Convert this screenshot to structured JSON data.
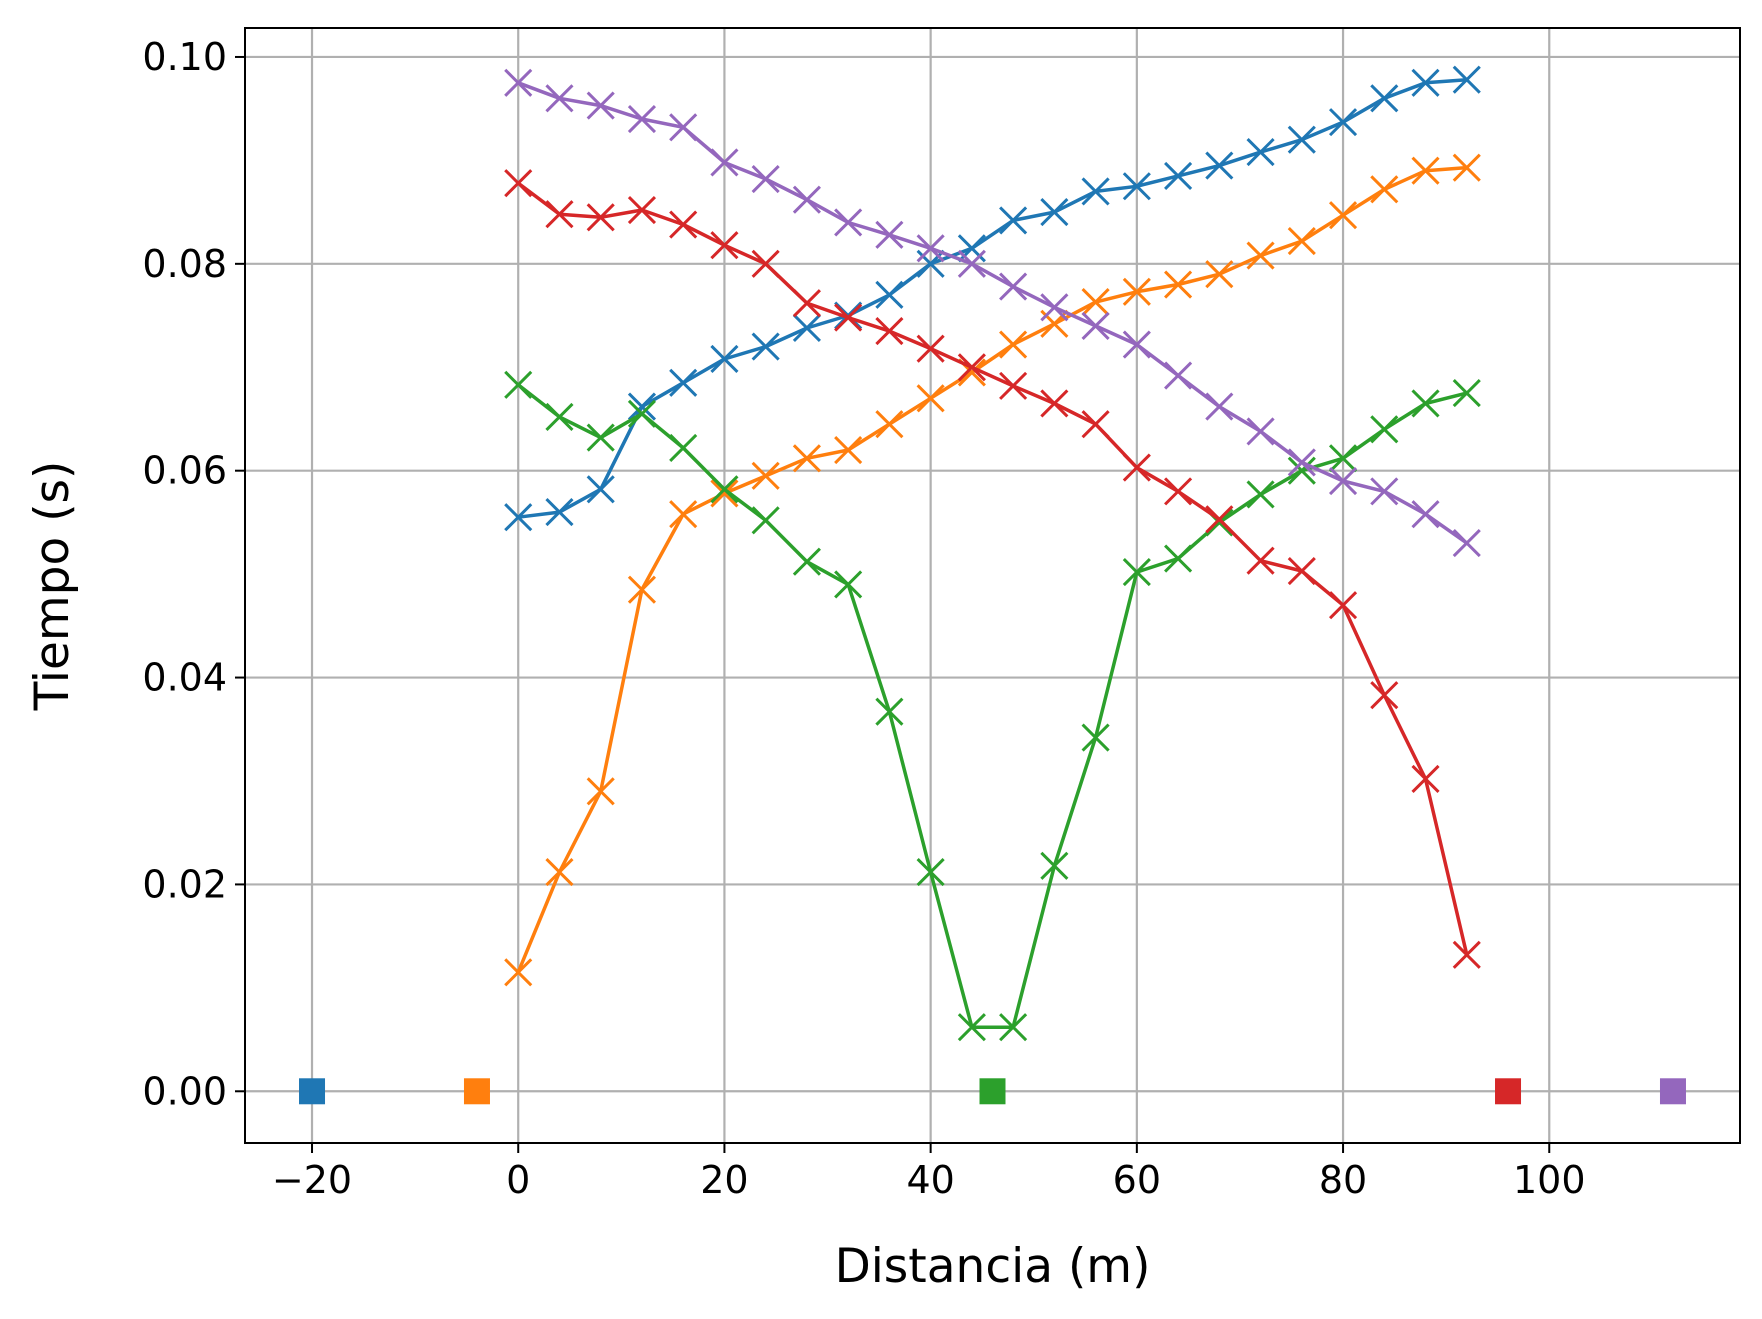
{
  "chart_data": {
    "type": "line",
    "title": "",
    "xlabel": "Distancia (m)",
    "ylabel": "Tiempo (s)",
    "xlim": [
      -26.5,
      118.5
    ],
    "ylim": [
      -0.005,
      0.1028
    ],
    "grid": true,
    "legend": "none",
    "x_ticks": [
      -20,
      0,
      20,
      40,
      60,
      80,
      100
    ],
    "x_tick_labels": [
      "−20",
      "0",
      "20",
      "40",
      "60",
      "80",
      "100"
    ],
    "y_ticks": [
      0.0,
      0.02,
      0.04,
      0.06,
      0.08,
      0.1
    ],
    "y_tick_labels": [
      "0.00",
      "0.02",
      "0.04",
      "0.06",
      "0.08",
      "0.10"
    ],
    "x": [
      0,
      4,
      8,
      12,
      16,
      20,
      24,
      28,
      32,
      36,
      40,
      44,
      48,
      52,
      56,
      60,
      64,
      68,
      72,
      76,
      80,
      84,
      88,
      92
    ],
    "series": [
      {
        "color": "#1f77b4",
        "source_x": -20,
        "values": [
          0.0555,
          0.056,
          0.0582,
          0.0662,
          0.0685,
          0.0708,
          0.072,
          0.0738,
          0.075,
          0.077,
          0.08,
          0.0815,
          0.0842,
          0.085,
          0.087,
          0.0875,
          0.0885,
          0.0895,
          0.0908,
          0.092,
          0.0937,
          0.096,
          0.0975,
          0.0978
        ]
      },
      {
        "color": "#ff7f0e",
        "source_x": -4,
        "values": [
          0.0115,
          0.0212,
          0.029,
          0.0485,
          0.0558,
          0.0578,
          0.0595,
          0.0612,
          0.062,
          0.0645,
          0.067,
          0.0695,
          0.0722,
          0.0742,
          0.0763,
          0.0773,
          0.078,
          0.079,
          0.0808,
          0.0822,
          0.0847,
          0.0872,
          0.089,
          0.0893
        ]
      },
      {
        "color": "#2ca02c",
        "source_x": 46,
        "values": [
          0.0683,
          0.0652,
          0.0632,
          0.0655,
          0.0622,
          0.0582,
          0.0552,
          0.0512,
          0.049,
          0.0367,
          0.0212,
          0.0062,
          0.0062,
          0.0218,
          0.0342,
          0.0502,
          0.0515,
          0.055,
          0.0577,
          0.06,
          0.0612,
          0.064,
          0.0665,
          0.0675
        ]
      },
      {
        "color": "#d62728",
        "source_x": 96,
        "values": [
          0.0878,
          0.0848,
          0.0845,
          0.0852,
          0.0838,
          0.0818,
          0.08,
          0.0762,
          0.0748,
          0.0735,
          0.0718,
          0.07,
          0.0682,
          0.0665,
          0.0645,
          0.0603,
          0.058,
          0.0553,
          0.0513,
          0.0503,
          0.047,
          0.0383,
          0.0302,
          0.0132
        ]
      },
      {
        "color": "#9467bd",
        "source_x": 112,
        "values": [
          0.0975,
          0.096,
          0.0953,
          0.094,
          0.0932,
          0.0898,
          0.0882,
          0.0862,
          0.084,
          0.0828,
          0.0815,
          0.08,
          0.0778,
          0.0758,
          0.074,
          0.0722,
          0.0692,
          0.0662,
          0.0638,
          0.0608,
          0.059,
          0.058,
          0.0558,
          0.053
        ]
      }
    ]
  }
}
